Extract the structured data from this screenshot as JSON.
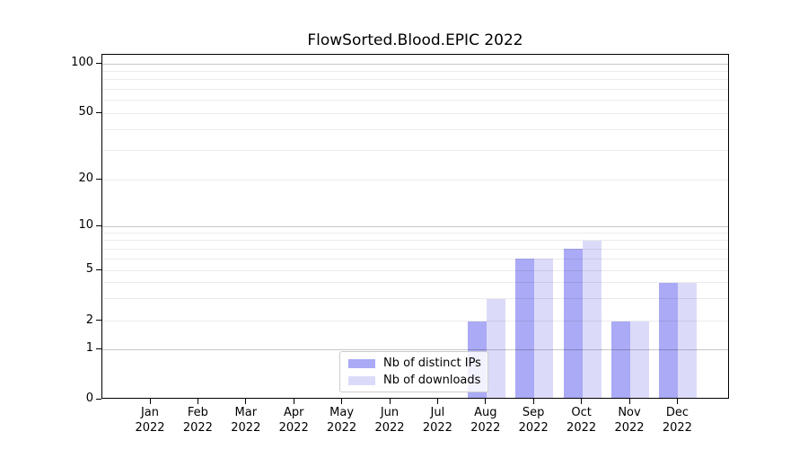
{
  "chart_data": {
    "type": "bar",
    "title": "FlowSorted.Blood.EPIC 2022",
    "categories": [
      "Jan 2022",
      "Feb 2022",
      "Mar 2022",
      "Apr 2022",
      "May 2022",
      "Jun 2022",
      "Jul 2022",
      "Aug 2022",
      "Sep 2022",
      "Oct 2022",
      "Nov 2022",
      "Dec 2022"
    ],
    "series": [
      {
        "name": "Nb of distinct IPs",
        "color": "#aaaaf6",
        "values": [
          0,
          0,
          0,
          0,
          0,
          0,
          0,
          2,
          6,
          7,
          2,
          4
        ]
      },
      {
        "name": "Nb of downloads",
        "color": "#dbdbf9",
        "values": [
          0,
          0,
          0,
          0,
          0,
          0,
          0,
          3,
          6,
          8,
          2,
          4
        ]
      }
    ],
    "yticks": [
      0,
      1,
      2,
      5,
      10,
      20,
      50,
      100
    ],
    "minor_gridline_values": [
      2,
      3,
      4,
      5,
      6,
      7,
      8,
      9,
      20,
      30,
      40,
      50,
      60,
      70,
      80,
      90
    ],
    "major_gridline_values": [
      1,
      10,
      100
    ],
    "scale": "log-like (0,1,2,5,10,20,50,100)",
    "ylim": [
      0,
      110
    ],
    "xlabel": "",
    "ylabel": "",
    "grid": true,
    "legend_position": "inside lower-center"
  },
  "legend": {
    "items": [
      {
        "label": "Nb of distinct IPs",
        "color": "#aaaaf6"
      },
      {
        "label": "Nb of downloads",
        "color": "#dbdbf9"
      }
    ]
  }
}
